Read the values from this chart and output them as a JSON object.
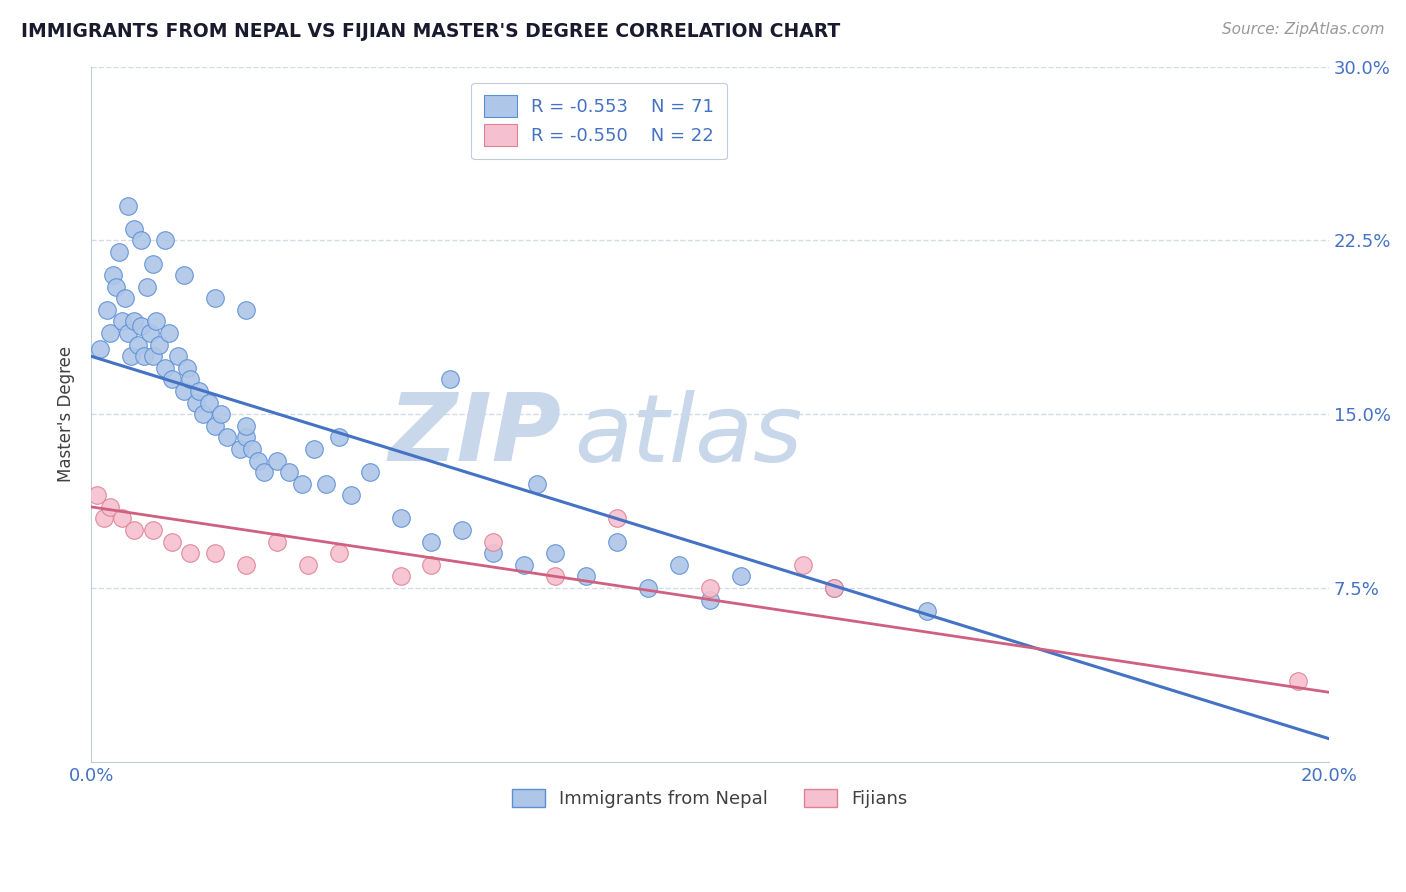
{
  "title": "IMMIGRANTS FROM NEPAL VS FIJIAN MASTER'S DEGREE CORRELATION CHART",
  "source": "Source: ZipAtlas.com",
  "ylabel": "Master's Degree",
  "legend_label1": "Immigrants from Nepal",
  "legend_label2": "Fijians",
  "legend_R1": "R = -0.553",
  "legend_N1": "N = 71",
  "legend_R2": "R = -0.550",
  "legend_N2": "N = 22",
  "nepal_color": "#aec6e8",
  "nepal_edge_color": "#5b8fd4",
  "nepal_line_color": "#4472c4",
  "fijian_color": "#f5c0d0",
  "fijian_edge_color": "#e08090",
  "fijian_line_color": "#d06080",
  "watermark_zip_color": "#c8d8ea",
  "watermark_atlas_color": "#c8d8ea",
  "background_color": "#ffffff",
  "grid_color": "#c8d4e0",
  "nepal_x": [
    0.15,
    0.25,
    0.3,
    0.35,
    0.4,
    0.45,
    0.5,
    0.55,
    0.6,
    0.65,
    0.7,
    0.75,
    0.8,
    0.85,
    0.9,
    0.95,
    1.0,
    1.05,
    1.1,
    1.2,
    1.25,
    1.3,
    1.4,
    1.5,
    1.55,
    1.6,
    1.7,
    1.75,
    1.8,
    1.9,
    2.0,
    2.1,
    2.2,
    2.4,
    2.5,
    2.6,
    2.7,
    2.8,
    3.0,
    3.2,
    3.4,
    3.6,
    3.8,
    4.0,
    4.5,
    5.0,
    5.5,
    6.0,
    6.5,
    7.0,
    7.5,
    8.0,
    8.5,
    9.0,
    9.5,
    10.0,
    10.5,
    12.0,
    13.5,
    2.5,
    4.2,
    5.8,
    7.2,
    0.6,
    0.7,
    0.8,
    1.0,
    1.2,
    1.5,
    2.0,
    2.5
  ],
  "nepal_y": [
    17.8,
    19.5,
    18.5,
    21.0,
    20.5,
    22.0,
    19.0,
    20.0,
    18.5,
    17.5,
    19.0,
    18.0,
    18.8,
    17.5,
    20.5,
    18.5,
    17.5,
    19.0,
    18.0,
    17.0,
    18.5,
    16.5,
    17.5,
    16.0,
    17.0,
    16.5,
    15.5,
    16.0,
    15.0,
    15.5,
    14.5,
    15.0,
    14.0,
    13.5,
    14.0,
    13.5,
    13.0,
    12.5,
    13.0,
    12.5,
    12.0,
    13.5,
    12.0,
    14.0,
    12.5,
    10.5,
    9.5,
    10.0,
    9.0,
    8.5,
    9.0,
    8.0,
    9.5,
    7.5,
    8.5,
    7.0,
    8.0,
    7.5,
    6.5,
    14.5,
    11.5,
    16.5,
    12.0,
    24.0,
    23.0,
    22.5,
    21.5,
    22.5,
    21.0,
    20.0,
    19.5
  ],
  "fijian_x": [
    0.1,
    0.2,
    0.3,
    0.5,
    0.7,
    1.0,
    1.3,
    1.6,
    2.0,
    2.5,
    3.0,
    3.5,
    4.0,
    5.0,
    5.5,
    6.5,
    7.5,
    8.5,
    10.0,
    11.5,
    12.0,
    19.5
  ],
  "fijian_y": [
    11.5,
    10.5,
    11.0,
    10.5,
    10.0,
    10.0,
    9.5,
    9.0,
    9.0,
    8.5,
    9.5,
    8.5,
    9.0,
    8.0,
    8.5,
    9.5,
    8.0,
    10.5,
    7.5,
    8.5,
    7.5,
    3.5
  ],
  "xlim": [
    0.0,
    20.0
  ],
  "ylim": [
    0.0,
    30.0
  ],
  "nepal_line_start_y": 17.5,
  "nepal_line_end_y": 1.0,
  "fijian_line_start_y": 11.0,
  "fijian_line_end_y": 3.0
}
